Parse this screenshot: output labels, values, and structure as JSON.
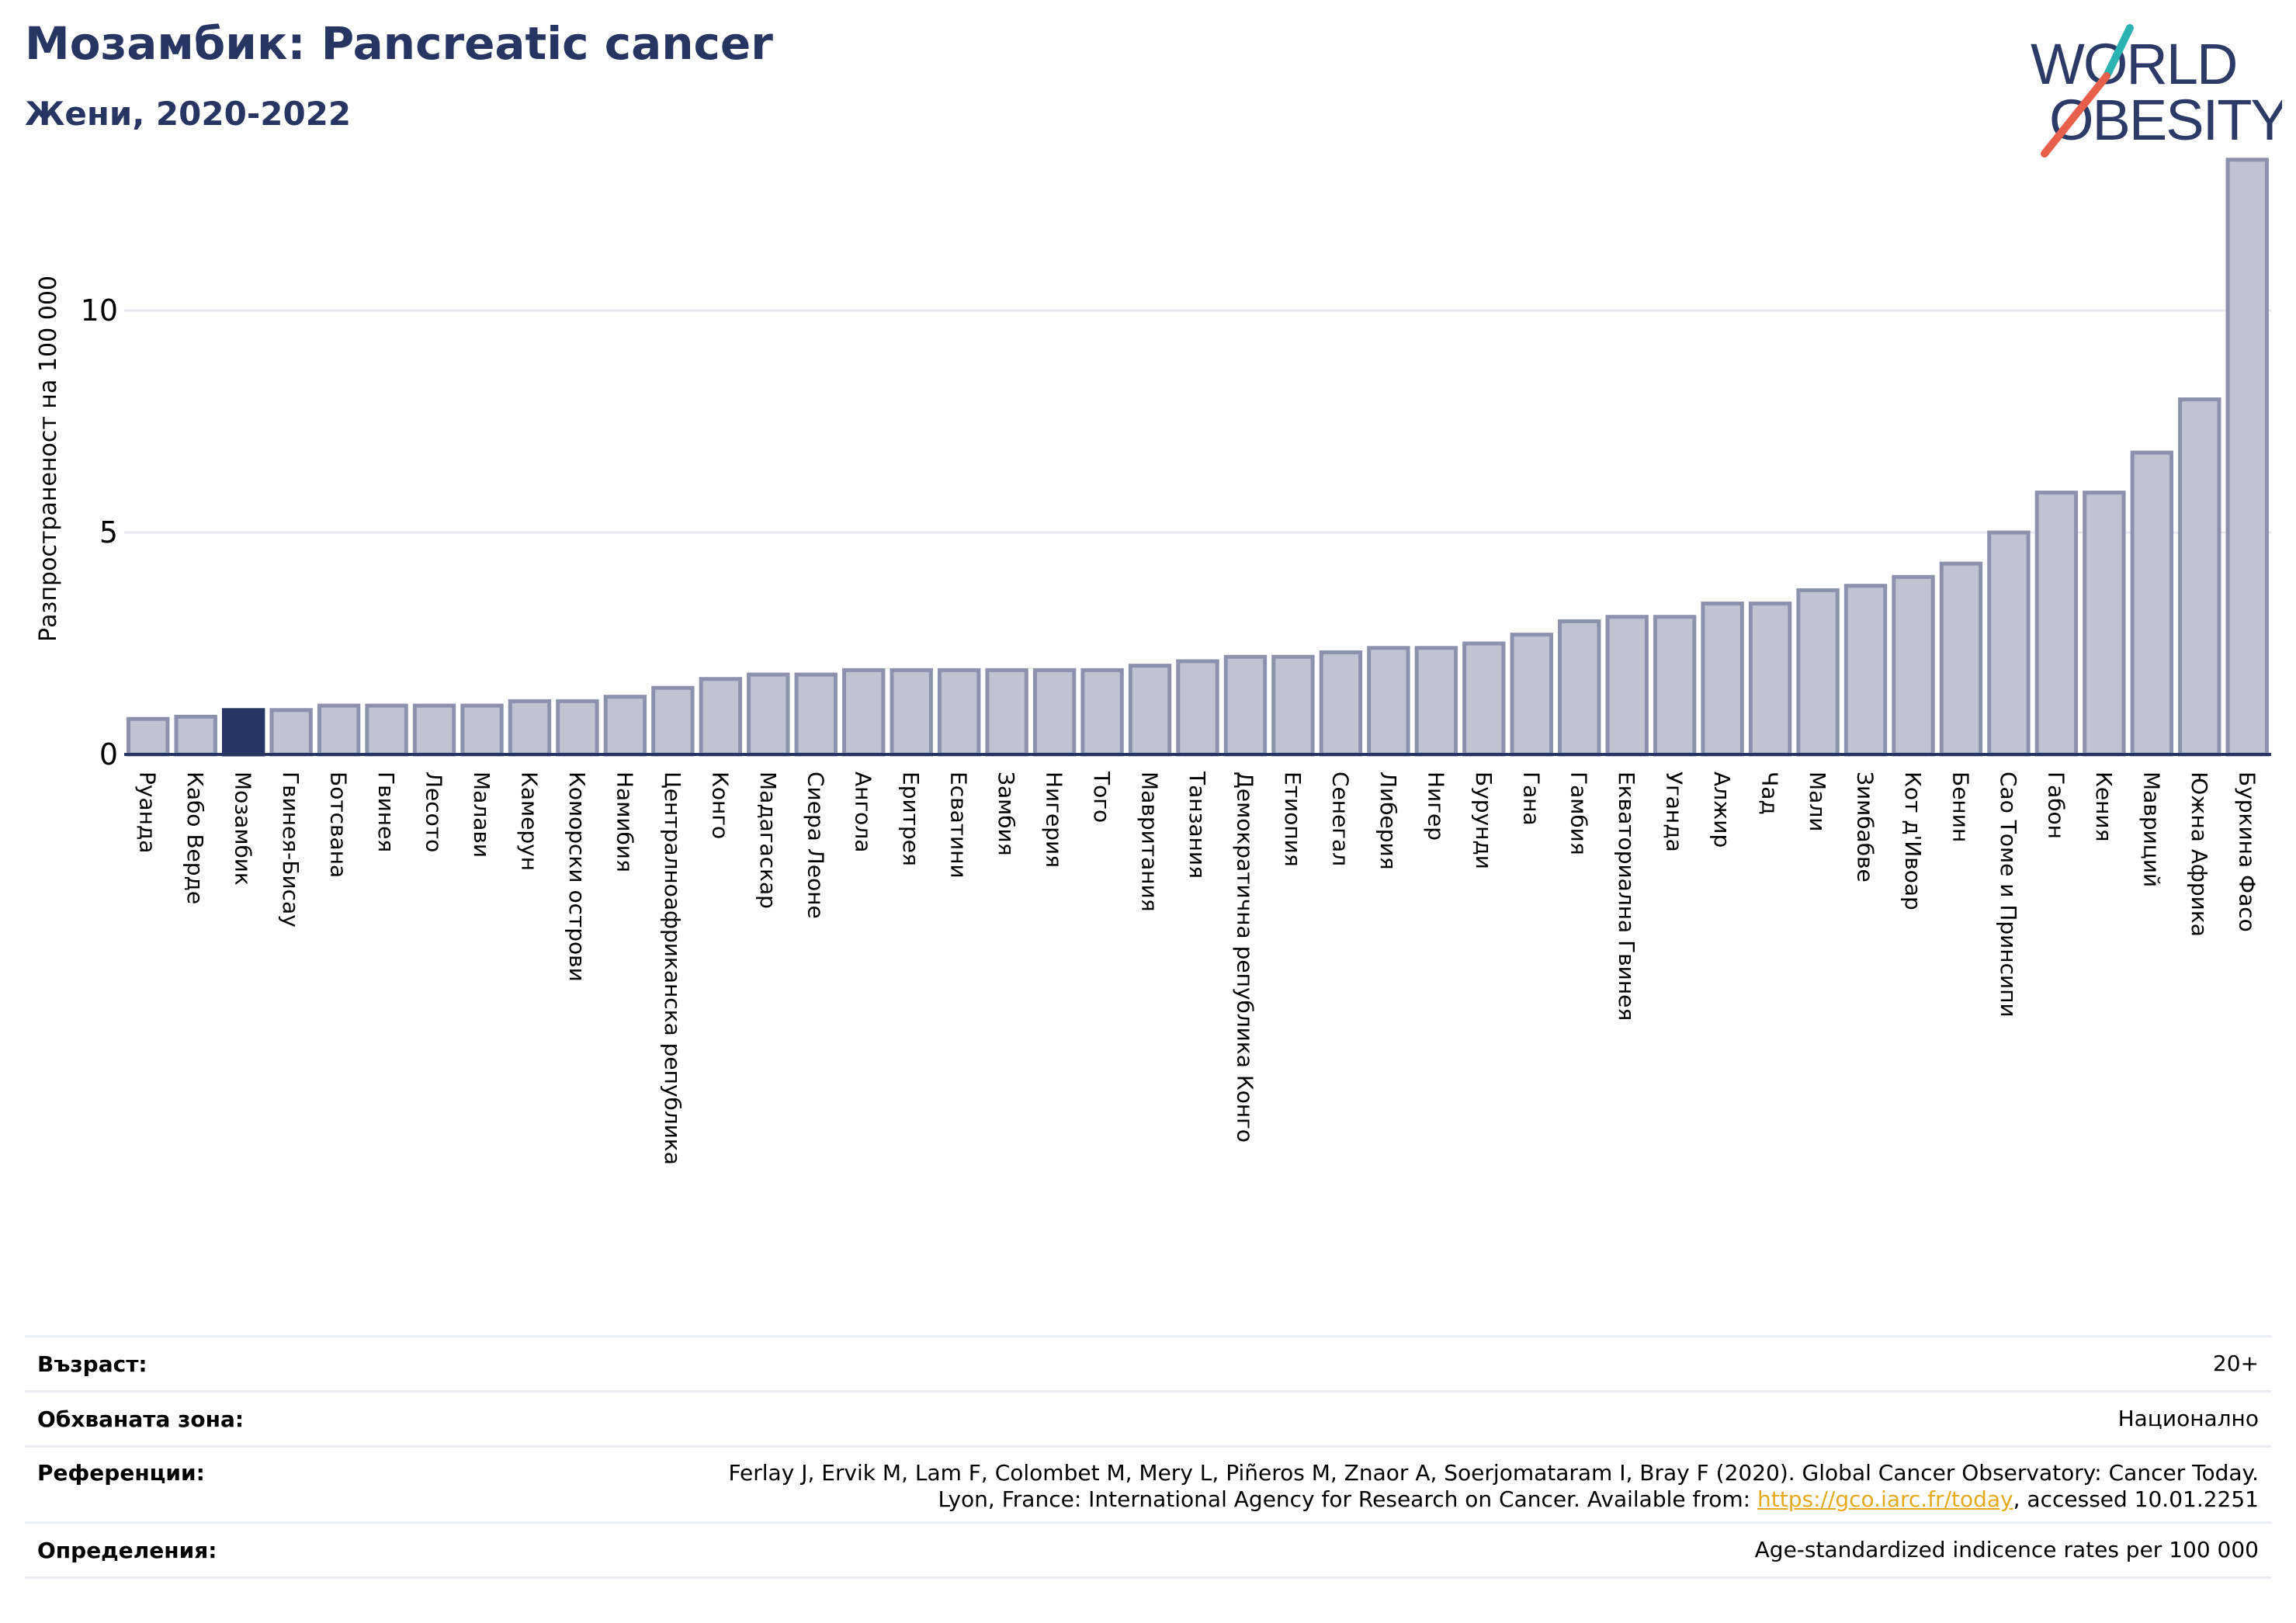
{
  "header": {
    "title": "Мозамбик: Pancreatic cancer",
    "subtitle": "Жени, 2020-2022"
  },
  "logo": {
    "line1": "WORLD",
    "line2": "OBESITY",
    "colors": {
      "text": "#2b3a67",
      "teal": "#2bb3b3",
      "coral": "#e8604c"
    }
  },
  "chart_data": {
    "type": "bar",
    "ylabel": "Разпространеност  на 100 000",
    "xlabel": "",
    "ylim": [
      0,
      14.2
    ],
    "yticks": [
      0,
      5,
      10
    ],
    "grid": true,
    "highlight": "Мозамбик",
    "colors": {
      "bar": "#c0c3d1",
      "bar_edge": "#8c92ad",
      "highlight": "#263562"
    },
    "categories": [
      "Руанда",
      "Кабо Верде",
      "Мозамбик",
      "Гвинея-Бисау",
      "Ботсвана",
      "Гвинея",
      "Лесото",
      "Малави",
      "Камерун",
      "Коморски острови",
      "Намибия",
      "Централноафриканска република",
      "Конго",
      "Мадагаскар",
      "Сиера Леоне",
      "Ангола",
      "Еритрея",
      "Есватини",
      "Замбия",
      "Нигерия",
      "Того",
      "Мавритания",
      "Танзания",
      "Демократична република Конго",
      "Етиопия",
      "Сенегал",
      "Либерия",
      "Нигер",
      "Бурунди",
      "Гана",
      "Гамбия",
      "Екваториална Гвинея",
      "Уганда",
      "Алжир",
      "Чад",
      "Мали",
      "Зимбабве",
      "Кот д'Ивоар",
      "Бенин",
      "Сао Томе и Принсипи",
      "Габон",
      "Кения",
      "Мавриций",
      "Южна Африка",
      "Буркина Фасо"
    ],
    "values": [
      0.8,
      0.85,
      1.0,
      1.0,
      1.1,
      1.1,
      1.1,
      1.1,
      1.2,
      1.2,
      1.3,
      1.5,
      1.7,
      1.8,
      1.8,
      1.9,
      1.9,
      1.9,
      1.9,
      1.9,
      1.9,
      2.0,
      2.1,
      2.2,
      2.2,
      2.3,
      2.4,
      2.4,
      2.5,
      2.7,
      3.0,
      3.1,
      3.1,
      3.4,
      3.4,
      3.7,
      3.8,
      4.0,
      4.3,
      5.0,
      5.9,
      5.9,
      6.8,
      8.0,
      13.4
    ]
  },
  "info": {
    "age_label": "Възраст:",
    "age_value": "20+",
    "area_label": "Обхваната зона:",
    "area_value": "Национално",
    "ref_label": "Референции:",
    "ref_line1": "Ferlay J, Ervik M, Lam F, Colombet M, Mery L, Piñeros M, Znaor A, Soerjomataram I, Bray F (2020). Global Cancer Observatory: Cancer Today.",
    "ref_line2_pre": "Lyon, France: International Agency for Research on Cancer. Available from: ",
    "ref_link": "https://gco.iarc.fr/today",
    "ref_line2_post": ", accessed 10.01.2251",
    "def_label": "Определения:",
    "def_value": "Age-standardized indicence rates per 100 000"
  }
}
